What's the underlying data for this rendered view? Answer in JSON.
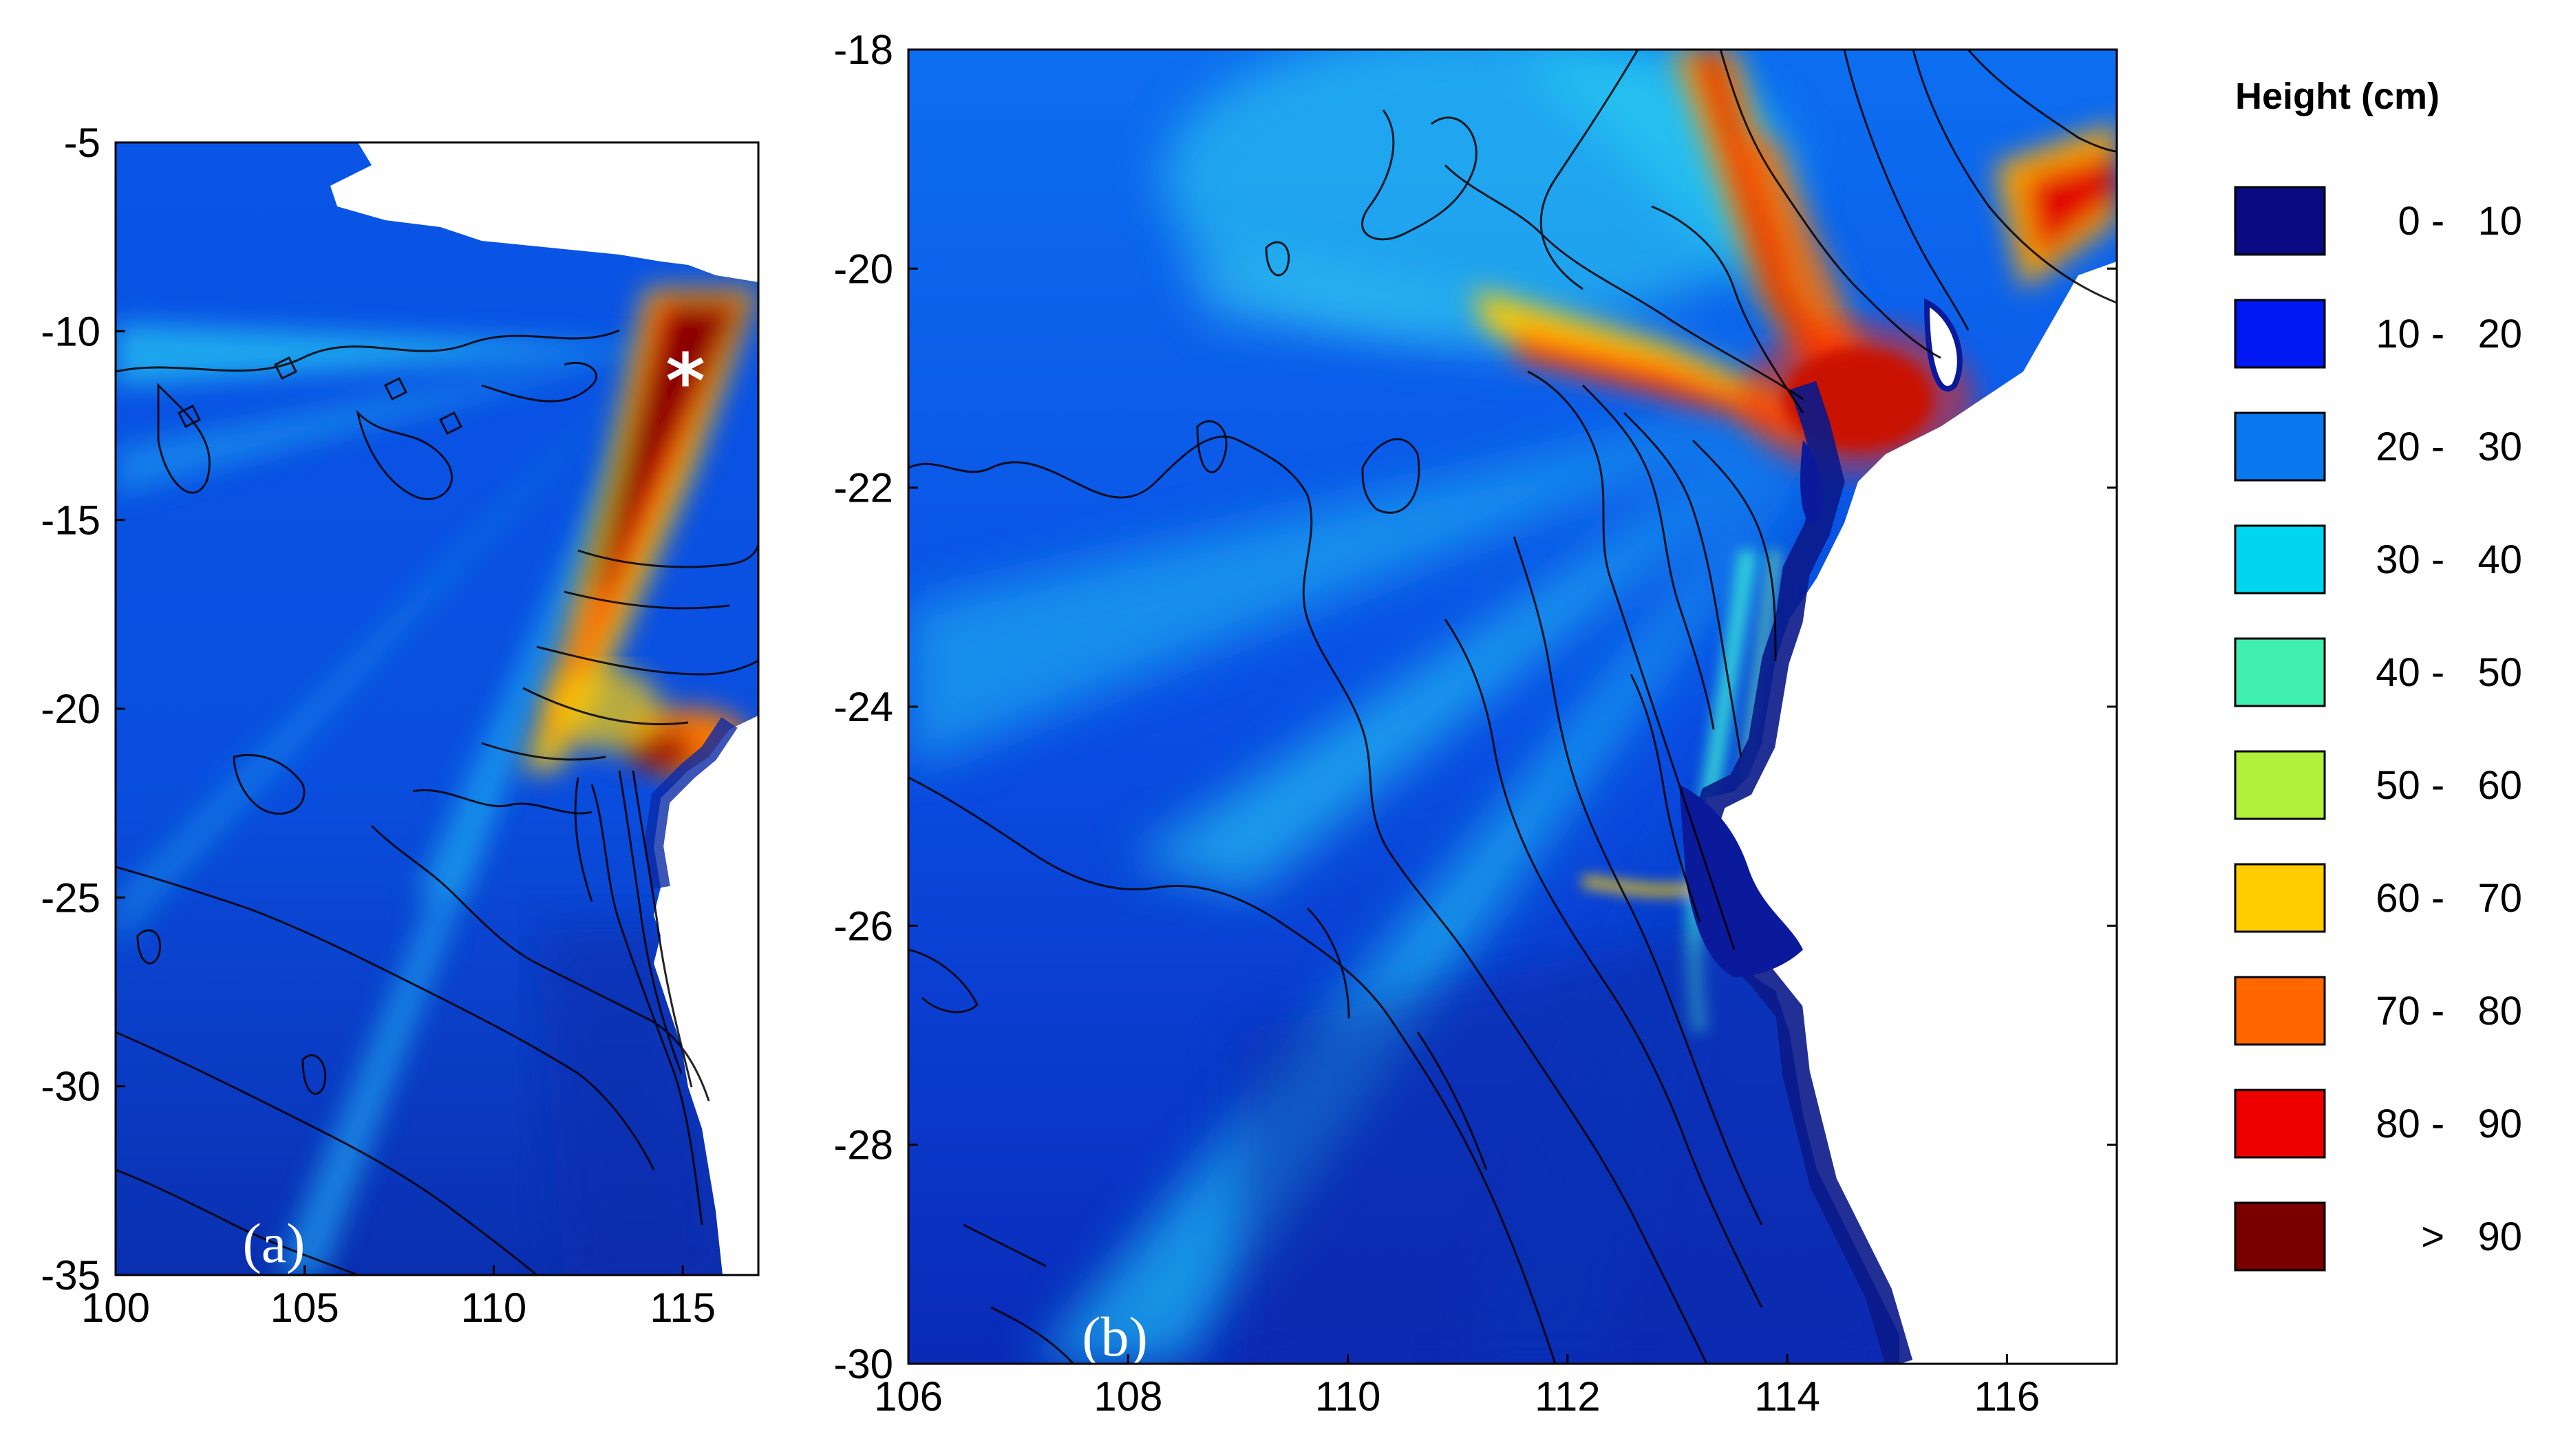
{
  "legend": {
    "title": "Height (cm)",
    "items": [
      {
        "label": "0 -   10",
        "color": "#0a0a82"
      },
      {
        "label": "10 -   20",
        "color": "#0018f2"
      },
      {
        "label": "20 -   30",
        "color": "#0a78ee"
      },
      {
        "label": "30 -   40",
        "color": "#00d6ef"
      },
      {
        "label": "40 -   50",
        "color": "#3ff0b0"
      },
      {
        "label": "50 -   60",
        "color": "#b0f23a"
      },
      {
        "label": "60 -   70",
        "color": "#ffcc00"
      },
      {
        "label": "70 -   80",
        "color": "#ff6600"
      },
      {
        "label": "80 -   90",
        "color": "#ee0000"
      },
      {
        "label": ">   90",
        "color": "#7a0000"
      }
    ]
  },
  "panel_a": {
    "label": "(a)",
    "x_ticks": [
      "100",
      "105",
      "110",
      "115"
    ],
    "y_ticks": [
      "-5",
      "-10",
      "-15",
      "-20",
      "-25",
      "-30",
      "-35"
    ],
    "epicenter_marker": "*"
  },
  "panel_b": {
    "label": "(b)",
    "x_ticks": [
      "106",
      "108",
      "110",
      "112",
      "114",
      "116"
    ],
    "y_ticks": [
      "-18",
      "-20",
      "-22",
      "-24",
      "-26",
      "-28",
      "-30"
    ]
  }
}
